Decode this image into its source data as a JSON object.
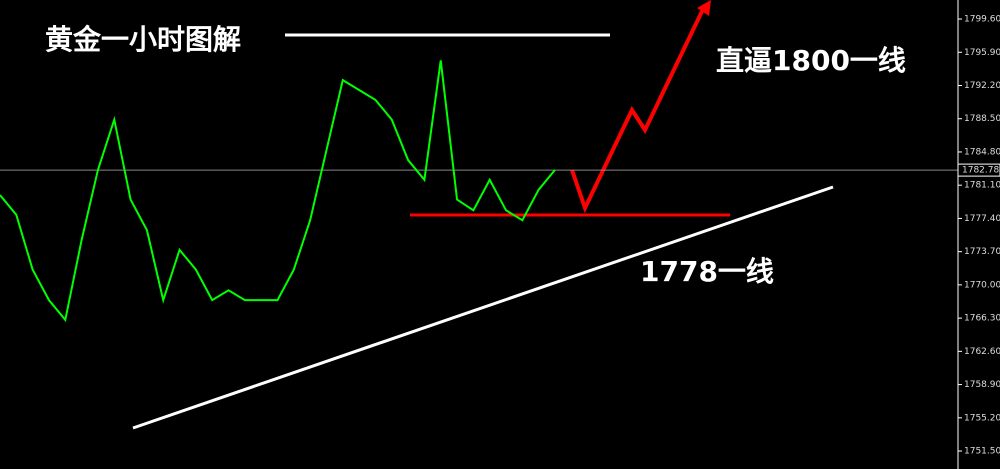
{
  "chart_data": {
    "type": "line",
    "title": "黄金一小时图解",
    "annotations": [
      "直逼1800一线",
      "1778一线"
    ],
    "categories": [
      null,
      null,
      null,
      null,
      null,
      null,
      null,
      null,
      null,
      null,
      null,
      null,
      null,
      null,
      null,
      null,
      null,
      null,
      null,
      null,
      null,
      null,
      null,
      null,
      null,
      null,
      null,
      null,
      null,
      null,
      null,
      null,
      null,
      null,
      null
    ],
    "series": [
      {
        "color": "#00ff00",
        "values": [
          1780.0,
          1777.8,
          1771.7,
          1768.3,
          1766.1,
          1775.0,
          1782.8,
          1788.4,
          1779.5,
          1776.1,
          1768.3,
          1773.9,
          1771.7,
          1768.3,
          1769.4,
          1768.3,
          1768.3,
          1768.3,
          1771.7,
          1777.2,
          1785.0,
          1792.8,
          1791.7,
          1790.6,
          1788.4,
          1783.9,
          1781.7,
          1795.0,
          1779.5,
          1778.3,
          1781.7,
          1778.3,
          1777.2,
          1780.6,
          1782.8
        ]
      }
    ],
    "current_price": 1782.78,
    "ylim": [
      1749.5,
      1801.72
    ],
    "yticks": [
      {
        "value": 1751.5,
        "label": "1751.50"
      },
      {
        "value": 1755.2,
        "label": "1755.20"
      },
      {
        "value": 1758.9,
        "label": "1758.90"
      },
      {
        "value": 1762.6,
        "label": "1762.60"
      },
      {
        "value": 1766.3,
        "label": "1766.30"
      },
      {
        "value": 1770.0,
        "label": "1770.00"
      },
      {
        "value": 1773.7,
        "label": "1773.70"
      },
      {
        "value": 1777.4,
        "label": "1777.40"
      },
      {
        "value": 1781.1,
        "label": "1781.10"
      },
      {
        "value": 1784.8,
        "label": "1784.80"
      },
      {
        "value": 1788.5,
        "label": "1788.50"
      },
      {
        "value": 1792.2,
        "label": "1792.20"
      },
      {
        "value": 1795.9,
        "label": "1795.90"
      },
      {
        "value": 1799.6,
        "label": "1799.60"
      }
    ]
  }
}
